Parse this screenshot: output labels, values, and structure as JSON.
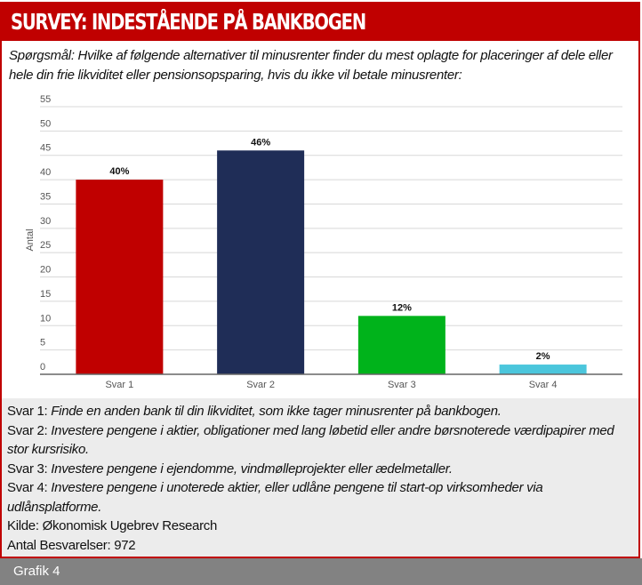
{
  "header": {
    "title": "SURVEY: INDESTÅENDE PÅ BANKBOGEN"
  },
  "question": "Spørgsmål: Hvilke af følgende alternativer til minusrenter finder du mest oplagte for placeringer af dele eller hele din frie likviditet eller pensionsopsparing, hvis du ikke vil betale minusrenter:",
  "chart_data": {
    "type": "bar",
    "categories": [
      "Svar 1",
      "Svar 2",
      "Svar 3",
      "Svar 4"
    ],
    "values": [
      40,
      46,
      12,
      2
    ],
    "data_labels": [
      "40%",
      "46%",
      "12%",
      "2%"
    ],
    "colors": [
      "#c00000",
      "#1f2d57",
      "#00b31b",
      "#4bc6dc"
    ],
    "ylabel": "Antal",
    "xlabel": "",
    "ylim": [
      0,
      55
    ],
    "yticks": [
      "0",
      "5",
      "10",
      "15",
      "20",
      "25",
      "30",
      "35",
      "40",
      "45",
      "50",
      "55"
    ],
    "grid": true
  },
  "caption": {
    "items": [
      {
        "prefix": "Svar 1: ",
        "text": "Finde en anden bank til din likviditet, som ikke tager minusrenter på bankbogen."
      },
      {
        "prefix": "Svar 2: ",
        "text": "Investere pengene i aktier, obligationer med lang løbetid eller andre børsnoterede værdipapirer med stor kursrisiko."
      },
      {
        "prefix": "Svar 3: ",
        "text": "Investere pengene i ejendomme, vindmølleprojekter eller ædelmetaller."
      },
      {
        "prefix": "Svar 4: ",
        "text": "Investere pengene i unoterede aktier, eller udlåne pengene til start-op virksomheder via udlånsplatforme."
      }
    ],
    "source": "Kilde: Økonomisk Ugebrev Research",
    "responses": "Antal Besvarelser: 972"
  },
  "footer": {
    "label": "Grafik 4"
  }
}
